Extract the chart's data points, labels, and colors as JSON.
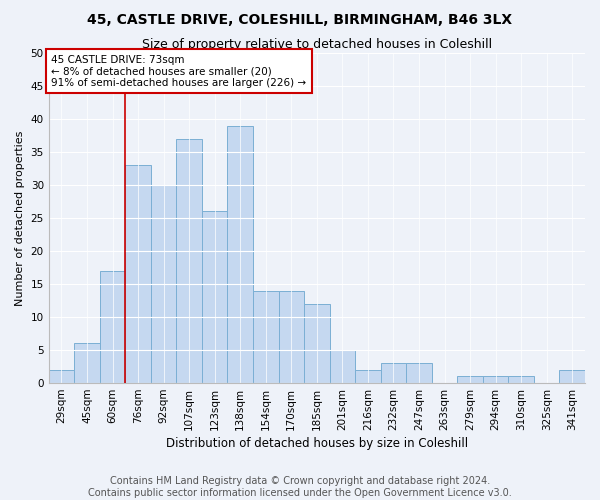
{
  "title1": "45, CASTLE DRIVE, COLESHILL, BIRMINGHAM, B46 3LX",
  "title2": "Size of property relative to detached houses in Coleshill",
  "xlabel": "Distribution of detached houses by size in Coleshill",
  "ylabel": "Number of detached properties",
  "bar_labels": [
    "29sqm",
    "45sqm",
    "60sqm",
    "76sqm",
    "92sqm",
    "107sqm",
    "123sqm",
    "138sqm",
    "154sqm",
    "170sqm",
    "185sqm",
    "201sqm",
    "216sqm",
    "232sqm",
    "247sqm",
    "263sqm",
    "279sqm",
    "294sqm",
    "310sqm",
    "325sqm",
    "341sqm"
  ],
  "bar_values": [
    2,
    6,
    17,
    33,
    30,
    37,
    26,
    39,
    14,
    14,
    12,
    5,
    2,
    3,
    3,
    0,
    1,
    1,
    1,
    0,
    2
  ],
  "bar_color": "#c5d8f0",
  "bar_edge_color": "#7bafd4",
  "annotation_title": "45 CASTLE DRIVE: 73sqm",
  "annotation_line1": "← 8% of detached houses are smaller (20)",
  "annotation_line2": "91% of semi-detached houses are larger (226) →",
  "annotation_box_color": "#ffffff",
  "annotation_box_edge_color": "#cc0000",
  "vline_x": 3,
  "ylim": [
    0,
    50
  ],
  "yticks": [
    0,
    5,
    10,
    15,
    20,
    25,
    30,
    35,
    40,
    45,
    50
  ],
  "footnote1": "Contains HM Land Registry data © Crown copyright and database right 2024.",
  "footnote2": "Contains public sector information licensed under the Open Government Licence v3.0.",
  "title1_fontsize": 10,
  "title2_fontsize": 9,
  "xlabel_fontsize": 8.5,
  "ylabel_fontsize": 8,
  "tick_fontsize": 7.5,
  "footnote_fontsize": 7,
  "background_color": "#eef2f9"
}
